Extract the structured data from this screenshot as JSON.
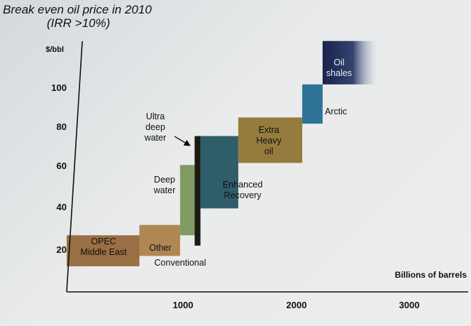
{
  "chart_data": {
    "type": "bar",
    "title": "Break even oil price in 2010",
    "subtitle": "(IRR >10%)",
    "ylabel": "$/bbl",
    "xlabel": "Billions of barrels",
    "xlim": [
      0,
      3300
    ],
    "ylim": [
      0,
      125
    ],
    "x_ticks": [
      1000,
      2000,
      3000
    ],
    "y_ticks": [
      20,
      40,
      60,
      80,
      100
    ],
    "grid": false,
    "legend": "none",
    "segments": [
      {
        "label": "OPEC\nMiddle East",
        "x0": 0,
        "x1": 625,
        "y0": 10,
        "y1": 25,
        "color": "#9a6f44"
      },
      {
        "label": "Other",
        "label2": "Conventional",
        "x0": 625,
        "x1": 975,
        "y0": 15,
        "y1": 30,
        "color": "#b08653"
      },
      {
        "label": "Deep\nwater",
        "x0": 975,
        "x1": 1100,
        "y0": 25,
        "y1": 59,
        "color": "#7f9a63"
      },
      {
        "label": "Ultra\ndeep\nwater",
        "x0": 1100,
        "x1": 1150,
        "y0": 20,
        "y1": 73,
        "color": "#1a1a10"
      },
      {
        "label": "Enhanced\nRecovery",
        "x0": 1150,
        "x1": 1475,
        "y0": 38,
        "y1": 73,
        "color": "#2f5d6a"
      },
      {
        "label": "Extra\nHeavy\noil",
        "x0": 1475,
        "x1": 2025,
        "y0": 60,
        "y1": 82,
        "color": "#957b3d"
      },
      {
        "label": "Arctic",
        "x0": 2025,
        "x1": 2200,
        "y0": 79,
        "y1": 98,
        "color": "#2c7397"
      },
      {
        "label": "Oil\nshales",
        "x0": 2200,
        "x1": 2675,
        "y0": 98,
        "y1": 119,
        "color": "#1c2c55"
      }
    ]
  }
}
